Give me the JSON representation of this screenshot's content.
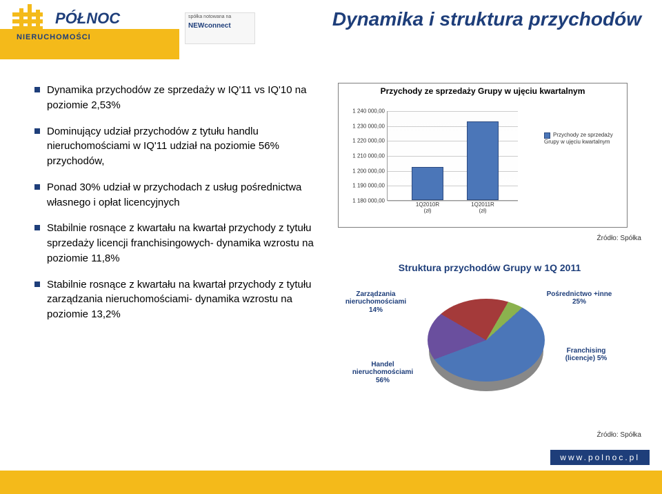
{
  "header": {
    "brand_main": "PÓŁNOC",
    "brand_sub": "NIERUCHOMOŚCI",
    "badge_line1": "spółka notowana na",
    "badge_line2": "NEWconnect",
    "title": "Dynamika i struktura przychodów"
  },
  "bullets": [
    "Dynamika przychodów ze sprzedaży w IQ'11 vs IQ'10 na poziomie 2,53%",
    "Dominujący udział przychodów z tytułu handlu nieruchomościami w IQ'11 udział na poziomie 56% przychodów,",
    "Ponad 30% udział w przychodach z usług pośrednictwa własnego i opłat licencyjnych",
    "Stabilnie rosnące z kwartału na kwartał przychody z tytułu sprzedaży licencji franchisingowych- dynamika wzrostu na poziomie 11,8%",
    "Stabilnie rosnące z kwartału na kwartał przychody z tytułu zarządzania nieruchomościami- dynamika wzrostu na poziomie 13,2%"
  ],
  "bar_chart": {
    "title": "Przychody ze sprzedaży Grupy w ujęciu kwartalnym",
    "y_ticks": [
      "1 180 000,00",
      "1 190 000,00",
      "1 200 000,00",
      "1 210 000,00",
      "1 220 000,00",
      "1 230 000,00",
      "1 240 000,00"
    ],
    "y_min": 1180000,
    "y_max": 1240000,
    "categories": [
      "1Q2010R\n(zł)",
      "1Q2011R\n(zł)"
    ],
    "values": [
      1202000,
      1232500
    ],
    "bar_color": "#4b76b8",
    "legend": "Przychody ze sprzedaży Grupy w ujęciu kwartalnym",
    "source": "Źródło: Spółka"
  },
  "pie_chart": {
    "title": "Struktura przychodów Grupy w 1Q 2011",
    "slices": [
      {
        "label": "Handel nieruchomościami",
        "value": 56,
        "color": "#4b76b8"
      },
      {
        "label": "Pośrednictwo +inne",
        "value": 25,
        "color": "#a43a3a"
      },
      {
        "label": "Franchising (licencje)",
        "value": 5,
        "color": "#8bb24e"
      },
      {
        "label": "Zarządzania nieruchomościami",
        "value": 14,
        "color": "#6a4f9e"
      }
    ],
    "labels": {
      "zarz": "Zarządzania nieruchomościami 14%",
      "handel": "Handel nieruchomościami 56%",
      "posr": "Pośrednictwo +inne 25%",
      "franch": "Franchising (licencje) 5%"
    },
    "source": "Źródło: Spółka"
  },
  "footer": {
    "url": "www.polnoc.pl"
  }
}
